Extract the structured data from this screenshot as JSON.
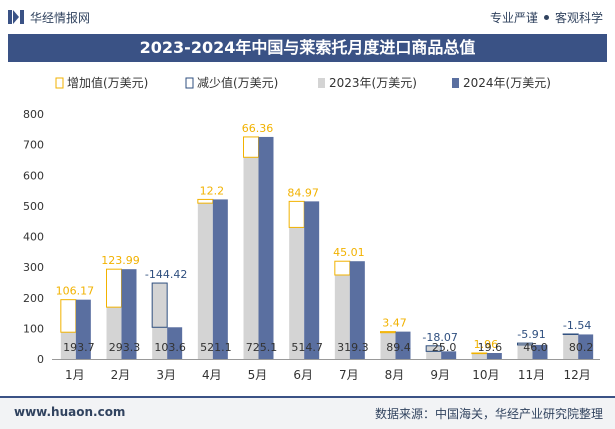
{
  "header": {
    "brand": "华经情报网",
    "slogan_left": "专业严谨",
    "slogan_right": "客观科学"
  },
  "footer": {
    "website": "www.huaon.com",
    "source": "数据来源：中国海关，华经产业研究院整理"
  },
  "colors": {
    "title_bar": "#3a5285",
    "bar_2023": "#d4d4d4",
    "bar_2024": "#5a6fa0",
    "increase": "#f2b200",
    "decrease": "#2f4f7f"
  },
  "chart_data": {
    "type": "bar",
    "title": "2023-2024年中国与莱索托月度进口商品总值",
    "categories": [
      "1月",
      "2月",
      "3月",
      "4月",
      "5月",
      "6月",
      "7月",
      "8月",
      "9月",
      "10月",
      "11月",
      "12月"
    ],
    "series": [
      {
        "name": "2023年(万美元)",
        "values": [
          87.5,
          169.3,
          248.0,
          508.9,
          658.7,
          429.7,
          274.3,
          85.9,
          43.1,
          17.6,
          51.9,
          81.7
        ]
      },
      {
        "name": "2024年(万美元)",
        "values": [
          193.7,
          293.3,
          103.6,
          521.1,
          725.1,
          514.7,
          319.3,
          89.4,
          25.0,
          19.6,
          46.0,
          80.2
        ]
      }
    ],
    "data_labels": [
      "193.7",
      "293.3",
      "103.6",
      "521.1",
      "725.1",
      "514.7",
      "319.3",
      "89.4",
      "25.0",
      "19.6",
      "46.0",
      "80.2"
    ],
    "changes": [
      106.17,
      123.99,
      -144.42,
      12.2,
      66.36,
      84.97,
      45.01,
      3.47,
      -18.07,
      1.96,
      -5.91,
      -1.54
    ],
    "change_labels": [
      "106.17",
      "123.99",
      "-144.42",
      "12.2",
      "66.36",
      "84.97",
      "45.01",
      "3.47",
      "-18.07",
      "1.96",
      "-5.91",
      "-1.54"
    ],
    "legend": [
      "增加值(万美元)",
      "减少值(万美元)",
      "2023年(万美元)",
      "2024年(万美元)"
    ],
    "legend_position": "top",
    "yticks": [
      "0",
      "100",
      "200",
      "300",
      "400",
      "500",
      "600",
      "700",
      "800"
    ],
    "ylim": [
      0,
      800
    ],
    "grid": false
  }
}
